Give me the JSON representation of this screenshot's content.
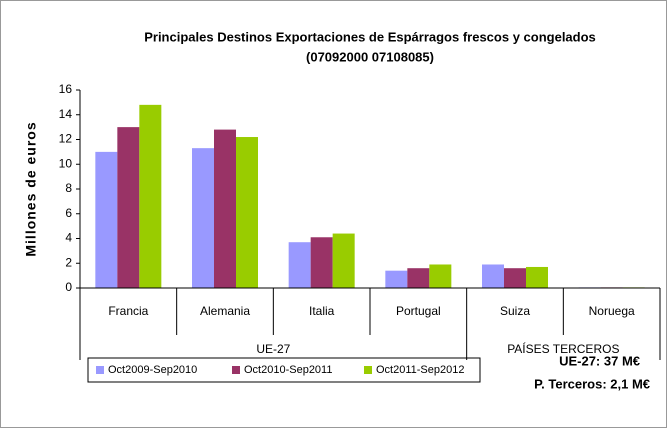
{
  "chart_data": {
    "type": "bar",
    "title": "Principales Destinos Exportaciones de Espárragos frescos y congelados",
    "subtitle": "(07092000 07108085)",
    "y_label": "Millones de euros",
    "categories": [
      "Francia",
      "Alemania",
      "Italia",
      "Portugal",
      "Suiza",
      "Noruega"
    ],
    "groups": [
      {
        "name": "UE-27",
        "count": 4
      },
      {
        "name": "PAÍSES TERCEROS",
        "count": 2
      }
    ],
    "series": [
      {
        "name": "Oct2009-Sep2010",
        "color": "#9999ff",
        "values": [
          11.0,
          11.3,
          3.7,
          1.4,
          1.9,
          0.05
        ]
      },
      {
        "name": "Oct2010-Sep2011",
        "color": "#993366",
        "values": [
          13.0,
          12.8,
          4.1,
          1.6,
          1.6,
          0.05
        ]
      },
      {
        "name": "Oct2011-Sep2012",
        "color": "#99cc00",
        "values": [
          14.8,
          12.2,
          4.4,
          1.9,
          1.7,
          0.05
        ]
      }
    ],
    "ylim": [
      0,
      16
    ],
    "yticks": [
      0,
      2,
      4,
      6,
      8,
      10,
      12,
      14,
      16
    ],
    "grid": false,
    "legend": "bottom",
    "annotations": [
      "UE-27: 37 M€",
      "P. Terceros: 2,1 M€"
    ]
  }
}
